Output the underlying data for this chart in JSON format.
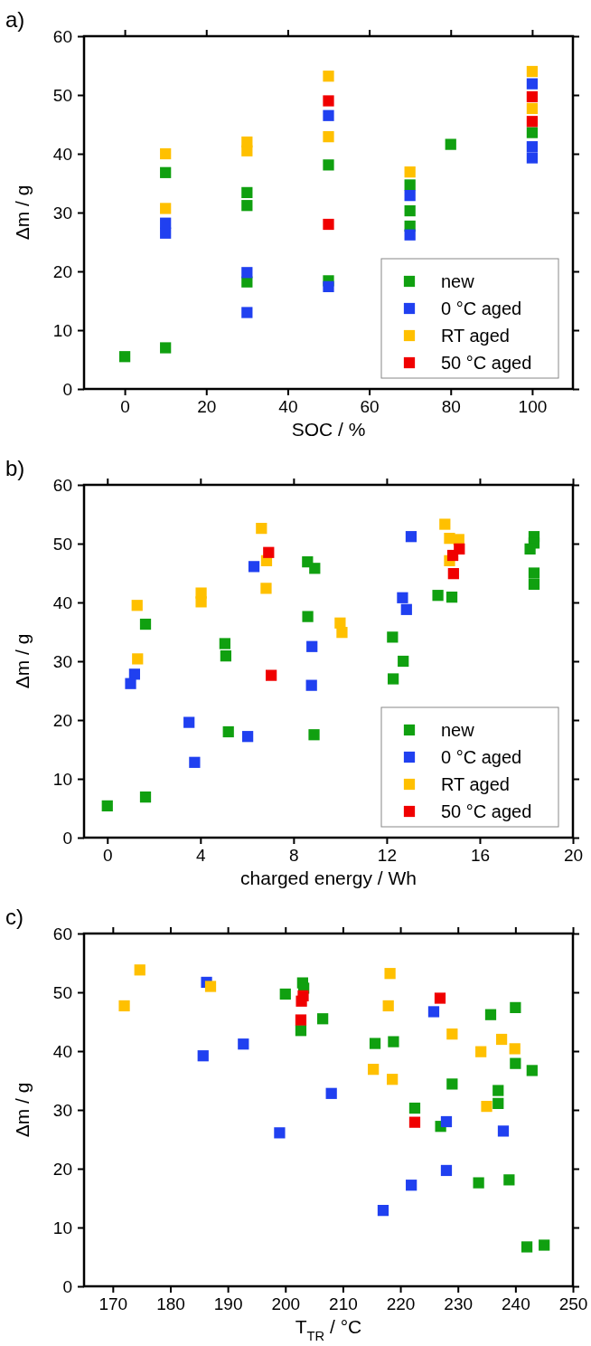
{
  "chart_data": [
    {
      "type": "scatter",
      "title": "a)",
      "xlabel": "SOC / %",
      "ylabel": "Δm / g",
      "xlim": [
        -10,
        110
      ],
      "xticks": [
        0,
        20,
        40,
        60,
        80,
        100
      ],
      "ylim": [
        0,
        60
      ],
      "yticks": [
        0,
        10,
        20,
        30,
        40,
        50,
        60
      ],
      "legend": "bottom right",
      "marker": "square",
      "series": [
        {
          "name": "new",
          "color": "#10a010",
          "x": [
            0,
            10,
            10,
            30,
            30,
            30,
            50,
            50,
            70,
            70,
            70,
            80,
            100
          ],
          "values": [
            5.5,
            7.0,
            36.8,
            33.4,
            31.2,
            18.2,
            38.1,
            18.4,
            34.7,
            30.3,
            27.7,
            41.6,
            43.6
          ]
        },
        {
          "name": "0 °C aged",
          "color": "#2040f0",
          "x": [
            10,
            10,
            30,
            30,
            50,
            50,
            70,
            70,
            100,
            100,
            100
          ],
          "values": [
            28.2,
            26.5,
            19.8,
            13.0,
            46.5,
            17.4,
            32.9,
            26.2,
            51.9,
            41.2,
            39.3
          ]
        },
        {
          "name": "RT aged",
          "color": "#ffc000",
          "x": [
            10,
            10,
            30,
            30,
            50,
            50,
            70,
            100,
            100
          ],
          "values": [
            40.0,
            30.7,
            42.0,
            40.5,
            53.2,
            42.9,
            36.9,
            54.0,
            47.7
          ]
        },
        {
          "name": "50 °C aged",
          "color": "#f00000",
          "x": [
            50,
            50,
            100,
            100
          ],
          "values": [
            49.0,
            28.0,
            49.7,
            45.5
          ]
        }
      ]
    },
    {
      "type": "scatter",
      "title": "b)",
      "xlabel": "charged energy / Wh",
      "ylabel": "Δm / g",
      "xlim": [
        -1,
        20
      ],
      "xticks": [
        0,
        4,
        8,
        12,
        16,
        20
      ],
      "ylim": [
        0,
        60
      ],
      "yticks": [
        0,
        10,
        20,
        30,
        40,
        50,
        60
      ],
      "legend": "bottom right",
      "marker": "square",
      "series": [
        {
          "name": "new",
          "color": "#10a010",
          "x": [
            0,
            1.64,
            1.64,
            5.05,
            5.09,
            5.2,
            8.61,
            8.6,
            8.91,
            8.88,
            12.25,
            12.71,
            12.28,
            14.2,
            14.8,
            18.33,
            18.33,
            18.16,
            18.33,
            18.33
          ],
          "values": [
            5.4,
            6.9,
            36.3,
            33.0,
            30.9,
            18.0,
            37.6,
            46.9,
            45.8,
            17.5,
            34.1,
            30.0,
            27.0,
            41.2,
            40.9,
            51.2,
            50.1,
            49.1,
            45.0,
            43.1
          ]
        },
        {
          "name": "0 °C aged",
          "color": "#2040f0",
          "x": [
            1.17,
            1.0,
            3.51,
            3.75,
            6.3,
            6.03,
            13.05,
            8.79,
            8.77,
            12.68,
            12.85
          ],
          "values": [
            27.8,
            26.2,
            19.6,
            12.8,
            46.1,
            17.2,
            51.2,
            32.5,
            25.9,
            40.8,
            38.8
          ]
        },
        {
          "name": "RT aged",
          "color": "#ffc000",
          "x": [
            1.28,
            1.3,
            4.03,
            4.03,
            6.62,
            6.84,
            6.82,
            10.0,
            10.08,
            14.5,
            14.7,
            15.1,
            14.7
          ],
          "values": [
            39.5,
            30.4,
            41.6,
            40.1,
            52.6,
            47.1,
            42.4,
            36.5,
            34.9,
            53.3,
            50.9,
            50.7,
            47.1
          ]
        },
        {
          "name": "50 °C aged",
          "color": "#f00000",
          "x": [
            6.93,
            7.04,
            15.12,
            14.84,
            14.87
          ],
          "values": [
            48.5,
            27.6,
            49.1,
            48.0,
            44.9
          ]
        }
      ]
    },
    {
      "type": "scatter",
      "title": "c)",
      "xlabel": "T$_{TR}$ / °C",
      "ylabel": "Δm / g",
      "xlim": [
        165,
        250
      ],
      "xticks": [
        170,
        180,
        190,
        200,
        210,
        220,
        230,
        240,
        250
      ],
      "ylim": [
        0,
        60
      ],
      "yticks": [
        0,
        10,
        20,
        30,
        40,
        50,
        60
      ],
      "marker": "square",
      "series": [
        {
          "color": "#10a010",
          "x": [
            203.0,
            203.2,
            200.0,
            206.5,
            202.7,
            215.6,
            218.8,
            235.7,
            240.0,
            240.0,
            242.9,
            229.0,
            237.0,
            237.0,
            222.5,
            227.0,
            233.6,
            238.9,
            242.0,
            245.0
          ],
          "values": [
            51.6,
            50.7,
            49.7,
            45.5,
            43.5,
            41.3,
            41.6,
            46.2,
            47.4,
            37.9,
            36.7,
            34.4,
            33.3,
            31.1,
            30.3,
            27.2,
            17.6,
            18.1,
            6.7,
            7.0
          ]
        },
        {
          "color": "#2040f0",
          "x": [
            186.3,
            185.7,
            192.7,
            208.0,
            199.0,
            225.8,
            228.0,
            237.9,
            228.0,
            221.9,
            217.0
          ],
          "values": [
            51.7,
            39.2,
            41.2,
            32.8,
            26.1,
            46.7,
            28.0,
            26.4,
            19.7,
            17.2,
            12.9
          ]
        },
        {
          "color": "#ffc000",
          "x": [
            174.7,
            172.0,
            187.0,
            218.2,
            217.9,
            229.0,
            234.0,
            237.6,
            239.9,
            215.3,
            218.6,
            235.0
          ],
          "values": [
            53.8,
            47.7,
            51.0,
            53.2,
            47.7,
            42.9,
            39.9,
            42.0,
            40.4,
            36.9,
            35.2,
            30.6
          ]
        },
        {
          "color": "#f00000",
          "x": [
            203.1,
            202.8,
            202.7,
            226.9,
            222.5
          ],
          "values": [
            49.4,
            48.5,
            45.3,
            49.0,
            27.9
          ]
        }
      ]
    }
  ]
}
